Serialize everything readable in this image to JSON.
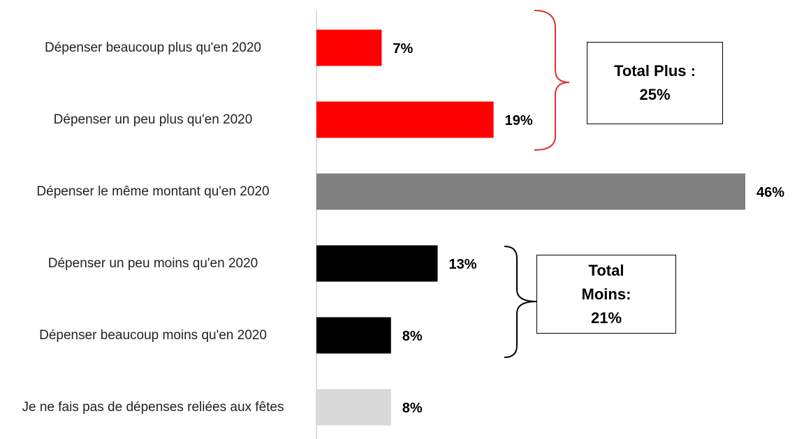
{
  "chart_data": {
    "type": "bar",
    "orientation": "horizontal",
    "categories": [
      "Dépenser beaucoup plus qu'en 2020",
      "Dépenser un peu plus qu'en 2020",
      "Dépenser le même montant qu'en 2020",
      "Dépenser un peu moins qu'en 2020",
      "Dépenser beaucoup moins qu'en 2020",
      "Je ne fais pas de dépenses reliées aux fêtes"
    ],
    "values": [
      7,
      19,
      46,
      13,
      8,
      8
    ],
    "value_labels": [
      "7%",
      "19%",
      "46%",
      "13%",
      "8%",
      "8%"
    ],
    "colors": [
      "#ff0000",
      "#ff0000",
      "#808080",
      "#000000",
      "#000000",
      "#d9d9d9"
    ],
    "xlim": [
      0,
      46
    ],
    "annotations": [
      {
        "lines": [
          "Total Plus :",
          "25%"
        ],
        "color": "#e03030"
      },
      {
        "lines": [
          "Total",
          "Moins:",
          "21%"
        ],
        "color": "#000000"
      }
    ]
  }
}
